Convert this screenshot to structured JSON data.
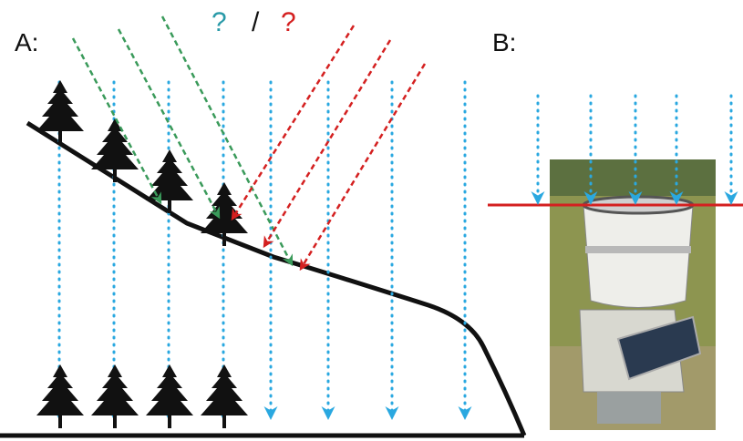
{
  "panels": [
    {
      "label": "A:"
    },
    {
      "label": "B:"
    }
  ],
  "question": {
    "left": "?",
    "separator": "/",
    "right": "?"
  }
}
